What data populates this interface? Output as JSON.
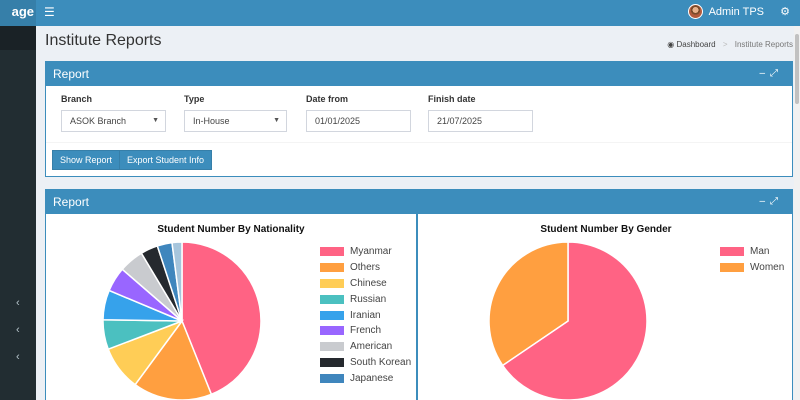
{
  "sidebar": {
    "brand": "age"
  },
  "navbar": {
    "username": "Admin TPS"
  },
  "header": {
    "title": "Institute Reports",
    "breadcrumb": {
      "home": "Dashboard",
      "current": "Institute Reports"
    }
  },
  "filter_box": {
    "title": "Report",
    "fields": {
      "branch": {
        "label": "Branch",
        "value": "ASOK Branch"
      },
      "type": {
        "label": "Type",
        "value": "In-House"
      },
      "date_from": {
        "label": "Date from",
        "value": "01/01/2025"
      },
      "finish_date": {
        "label": "Finish date",
        "value": "21/07/2025"
      }
    },
    "buttons": {
      "show_report": "Show Report",
      "export": "Export Student Info"
    }
  },
  "report_box": {
    "title": "Report"
  },
  "chart_data": [
    {
      "type": "pie",
      "title": "Student Number By Nationality",
      "legend": "right",
      "series": [
        {
          "name": "Myanmar",
          "value": 43.5,
          "color": "#ff6384"
        },
        {
          "name": "Others",
          "value": 16.0,
          "color": "#ff9f40"
        },
        {
          "name": "Chinese",
          "value": 9.0,
          "color": "#ffcd56"
        },
        {
          "name": "Russian",
          "value": 6.0,
          "color": "#4bc0c0"
        },
        {
          "name": "Iranian",
          "value": 6.0,
          "color": "#36a2eb"
        },
        {
          "name": "French",
          "value": 5.0,
          "color": "#9966ff"
        },
        {
          "name": "American",
          "value": 5.0,
          "color": "#c9cbcf"
        },
        {
          "name": "South Korean",
          "value": 3.5,
          "color": "#25292e"
        },
        {
          "name": "Japanese",
          "value": 3.0,
          "color": "#3f86bd"
        },
        {
          "name": "",
          "value": 2.0,
          "color": "#a6c5dc"
        }
      ]
    },
    {
      "type": "pie",
      "title": "Student Number By Gender",
      "legend": "right",
      "series": [
        {
          "name": "Man",
          "value": 65.5,
          "color": "#ff6384"
        },
        {
          "name": "Women",
          "value": 34.5,
          "color": "#ff9f40"
        }
      ]
    }
  ]
}
